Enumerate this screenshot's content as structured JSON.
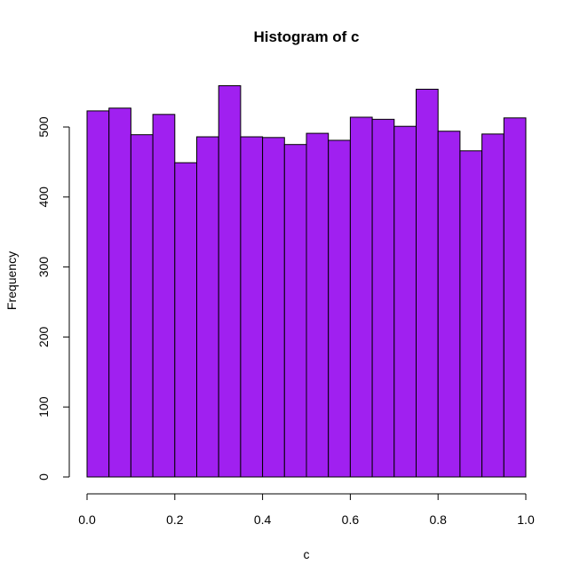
{
  "chart_data": {
    "type": "bar",
    "title": "Histogram of c",
    "xlabel": "c",
    "ylabel": "Frequency",
    "bin_edges": [
      0.0,
      0.05,
      0.1,
      0.15,
      0.2,
      0.25,
      0.3,
      0.35,
      0.4,
      0.45,
      0.5,
      0.55,
      0.6,
      0.65,
      0.7,
      0.75,
      0.8,
      0.85,
      0.9,
      0.95,
      1.0
    ],
    "values": [
      523,
      527,
      489,
      518,
      449,
      486,
      559,
      486,
      485,
      475,
      491,
      481,
      514,
      511,
      501,
      554,
      494,
      466,
      490,
      513
    ],
    "xlim": [
      0.0,
      1.0
    ],
    "ylim": [
      0,
      560
    ],
    "x_ticks": [
      0.0,
      0.2,
      0.4,
      0.6,
      0.8,
      1.0
    ],
    "x_tick_labels": [
      "0.0",
      "0.2",
      "0.4",
      "0.6",
      "0.8",
      "1.0"
    ],
    "y_ticks": [
      0,
      100,
      200,
      300,
      400,
      500
    ],
    "y_tick_labels": [
      "0",
      "100",
      "200",
      "300",
      "400",
      "500"
    ],
    "bar_color": "#a020f0",
    "grid": false,
    "legend": "none"
  }
}
